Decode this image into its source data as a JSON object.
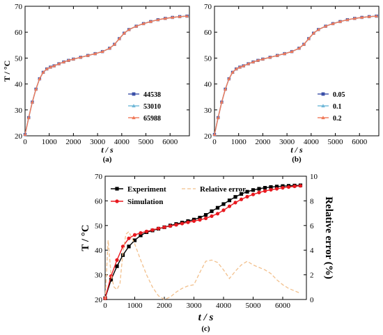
{
  "chart_data": [
    {
      "type": "line",
      "panel_label": "(a)",
      "xlabel": "t / s",
      "ylabel": "T / °C",
      "xlim": [
        0,
        6800
      ],
      "ylim": [
        20,
        70
      ],
      "xticks": [
        0,
        1000,
        2000,
        3000,
        4000,
        5000,
        6000
      ],
      "yticks": [
        20,
        30,
        40,
        50,
        60,
        70
      ],
      "legend_position": "lower-right",
      "series": [
        {
          "name": "44538",
          "color": "#3a4fa8",
          "marker": "square",
          "x": [
            0,
            150,
            300,
            450,
            600,
            750,
            900,
            1050,
            1200,
            1400,
            1600,
            1800,
            2000,
            2300,
            2600,
            2900,
            3200,
            3500,
            3700,
            3900,
            4100,
            4300,
            4600,
            4900,
            5200,
            5500,
            5800,
            6100,
            6400,
            6700
          ],
          "values": [
            20.5,
            27,
            33,
            38,
            42,
            44.5,
            45.8,
            46.5,
            47,
            47.8,
            48.5,
            49.1,
            49.6,
            50.3,
            51,
            51.7,
            52.5,
            53.8,
            55.3,
            57.5,
            59.6,
            61,
            62.3,
            63.3,
            64.1,
            64.8,
            65.3,
            65.7,
            66,
            66.2
          ]
        },
        {
          "name": "53010",
          "color": "#6fb8d8",
          "marker": "triangle",
          "x": [
            0,
            150,
            300,
            450,
            600,
            750,
            900,
            1050,
            1200,
            1400,
            1600,
            1800,
            2000,
            2300,
            2600,
            2900,
            3200,
            3500,
            3700,
            3900,
            4100,
            4300,
            4600,
            4900,
            5200,
            5500,
            5800,
            6100,
            6400,
            6700
          ],
          "values": [
            20.5,
            27,
            33,
            38,
            42,
            44.5,
            45.8,
            46.5,
            47,
            47.8,
            48.5,
            49.1,
            49.6,
            50.3,
            51,
            51.7,
            52.5,
            53.8,
            55.3,
            57.5,
            59.6,
            61,
            62.3,
            63.3,
            64.1,
            64.8,
            65.3,
            65.7,
            66,
            66.2
          ]
        },
        {
          "name": "65988",
          "color": "#f07a5a",
          "marker": "triangle",
          "x": [
            0,
            150,
            300,
            450,
            600,
            750,
            900,
            1050,
            1200,
            1400,
            1600,
            1800,
            2000,
            2300,
            2600,
            2900,
            3200,
            3500,
            3700,
            3900,
            4100,
            4300,
            4600,
            4900,
            5200,
            5500,
            5800,
            6100,
            6400,
            6700
          ],
          "values": [
            20.5,
            27,
            33,
            38,
            42,
            44.5,
            45.8,
            46.5,
            47,
            47.8,
            48.5,
            49.1,
            49.6,
            50.3,
            51,
            51.7,
            52.5,
            53.8,
            55.3,
            57.5,
            59.6,
            61,
            62.3,
            63.3,
            64.1,
            64.8,
            65.3,
            65.7,
            66,
            66.2
          ]
        }
      ]
    },
    {
      "type": "line",
      "panel_label": "(b)",
      "xlabel": "t / s",
      "ylabel": "",
      "xlim": [
        0,
        6800
      ],
      "ylim": [
        20,
        70
      ],
      "xticks": [
        0,
        1000,
        2000,
        3000,
        4000,
        5000,
        6000
      ],
      "yticks": [
        20,
        30,
        40,
        50,
        60,
        70
      ],
      "legend_position": "lower-right",
      "series": [
        {
          "name": "0.05",
          "color": "#3a4fa8",
          "marker": "square",
          "x": [
            0,
            150,
            300,
            450,
            600,
            750,
            900,
            1050,
            1200,
            1400,
            1600,
            1800,
            2000,
            2300,
            2600,
            2900,
            3200,
            3500,
            3700,
            3900,
            4100,
            4300,
            4600,
            4900,
            5200,
            5500,
            5800,
            6100,
            6400,
            6700
          ],
          "values": [
            20.5,
            27,
            33,
            38,
            42,
            44.5,
            45.8,
            46.5,
            47,
            47.8,
            48.5,
            49.1,
            49.6,
            50.3,
            51,
            51.7,
            52.5,
            53.8,
            55.3,
            57.5,
            59.6,
            61,
            62.3,
            63.3,
            64.1,
            64.8,
            65.3,
            65.7,
            66,
            66.2
          ]
        },
        {
          "name": "0.1",
          "color": "#6fb8d8",
          "marker": "triangle",
          "x": [
            0,
            150,
            300,
            450,
            600,
            750,
            900,
            1050,
            1200,
            1400,
            1600,
            1800,
            2000,
            2300,
            2600,
            2900,
            3200,
            3500,
            3700,
            3900,
            4100,
            4300,
            4600,
            4900,
            5200,
            5500,
            5800,
            6100,
            6400,
            6700
          ],
          "values": [
            20.5,
            27,
            33,
            38,
            42,
            44.5,
            45.8,
            46.5,
            47,
            47.8,
            48.5,
            49.1,
            49.6,
            50.3,
            51,
            51.7,
            52.5,
            53.8,
            55.3,
            57.5,
            59.6,
            61,
            62.3,
            63.3,
            64.1,
            64.8,
            65.3,
            65.7,
            66,
            66.2
          ]
        },
        {
          "name": "0.2",
          "color": "#f07a5a",
          "marker": "triangle",
          "x": [
            0,
            150,
            300,
            450,
            600,
            750,
            900,
            1050,
            1200,
            1400,
            1600,
            1800,
            2000,
            2300,
            2600,
            2900,
            3200,
            3500,
            3700,
            3900,
            4100,
            4300,
            4600,
            4900,
            5200,
            5500,
            5800,
            6100,
            6400,
            6700
          ],
          "values": [
            20.5,
            27,
            33,
            38,
            42,
            44.5,
            45.8,
            46.5,
            47,
            47.8,
            48.5,
            49.1,
            49.6,
            50.3,
            51,
            51.7,
            52.5,
            53.8,
            55.3,
            57.5,
            59.6,
            61,
            62.3,
            63.3,
            64.1,
            64.8,
            65.3,
            65.7,
            66,
            66.2
          ]
        }
      ]
    },
    {
      "type": "line",
      "panel_label": "(c)",
      "xlabel": "t / s",
      "ylabel": "T / °C",
      "ylabel_right": "Relative error (%)",
      "xlim": [
        0,
        6800
      ],
      "ylim": [
        20,
        70
      ],
      "ylim_right": [
        0,
        10
      ],
      "xticks": [
        0,
        1000,
        2000,
        3000,
        4000,
        5000,
        6000
      ],
      "yticks": [
        20,
        30,
        40,
        50,
        60,
        70
      ],
      "yticks_right": [
        0,
        2,
        4,
        6,
        8,
        10
      ],
      "legend_position": "top-left",
      "series": [
        {
          "name": "Experiment",
          "color": "#000000",
          "marker": "square",
          "axis": "left",
          "x": [
            0,
            200,
            400,
            600,
            800,
            1000,
            1200,
            1400,
            1600,
            1800,
            2000,
            2200,
            2400,
            2600,
            2800,
            3000,
            3200,
            3400,
            3600,
            3800,
            4000,
            4200,
            4400,
            4600,
            4800,
            5000,
            5200,
            5400,
            5600,
            5800,
            6000,
            6200,
            6400,
            6600
          ],
          "values": [
            20.5,
            28,
            33.5,
            38,
            41.5,
            44,
            46,
            47.3,
            48,
            48.7,
            49.3,
            50,
            50.6,
            51.2,
            51.8,
            52.4,
            53.2,
            54.3,
            55.8,
            57.2,
            58.7,
            60.2,
            61.6,
            62.8,
            63.7,
            64.4,
            64.9,
            65.3,
            65.6,
            65.8,
            66,
            66.1,
            66.2,
            66.3
          ]
        },
        {
          "name": "Simulation",
          "color": "#e8191f",
          "marker": "circle",
          "axis": "left",
          "x": [
            0,
            200,
            400,
            600,
            800,
            1000,
            1200,
            1400,
            1600,
            1800,
            2000,
            2200,
            2400,
            2600,
            2800,
            3000,
            3200,
            3400,
            3600,
            3800,
            4000,
            4200,
            4400,
            4600,
            4800,
            5000,
            5200,
            5400,
            5600,
            5800,
            6000,
            6200,
            6400,
            6600
          ],
          "values": [
            20.5,
            29.5,
            36,
            41.5,
            44.8,
            46.2,
            47,
            47.6,
            48.2,
            48.8,
            49.3,
            49.8,
            50.3,
            50.8,
            51.3,
            51.8,
            52.3,
            52.9,
            53.8,
            54.8,
            56.2,
            57.8,
            59.3,
            60.6,
            61.7,
            62.6,
            63.4,
            64,
            64.5,
            64.9,
            65.3,
            65.6,
            65.9,
            66.1
          ]
        },
        {
          "name": "Relative error",
          "color": "#f2c08c",
          "style": "dashed",
          "axis": "right",
          "x": [
            0,
            100,
            200,
            300,
            400,
            500,
            600,
            700,
            800,
            1000,
            1200,
            1400,
            1600,
            1800,
            2000,
            2200,
            2400,
            2600,
            2800,
            3000,
            3200,
            3400,
            3600,
            3800,
            4000,
            4200,
            4400,
            4600,
            4800,
            5000,
            5200,
            5400,
            5600,
            5800,
            6000,
            6200,
            6400,
            6600
          ],
          "values": [
            0,
            4.8,
            2,
            1,
            0.8,
            1.3,
            3.8,
            5.3,
            5.5,
            4.5,
            3.2,
            2,
            1,
            0.3,
            0,
            0.2,
            0.6,
            0.9,
            1.1,
            1.2,
            2.2,
            3.1,
            3.2,
            3.0,
            2.4,
            1.7,
            2.3,
            2.8,
            3.1,
            2.8,
            2.6,
            2.4,
            2.1,
            1.6,
            1.2,
            0.9,
            0.7,
            0.5
          ]
        }
      ]
    }
  ]
}
